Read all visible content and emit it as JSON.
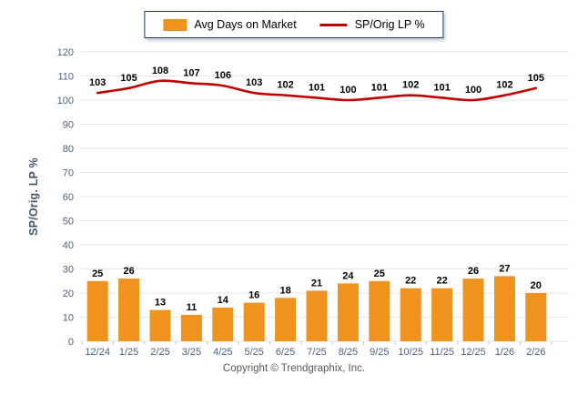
{
  "legend": {
    "items": [
      {
        "label": "Avg Days on Market",
        "type": "bar",
        "color": "#f0921e"
      },
      {
        "label": "SP/Orig LP %",
        "type": "line",
        "color": "#c00000"
      }
    ]
  },
  "footer": {
    "copyright": "Copyright © Trendgraphix, Inc."
  },
  "chart_data": {
    "type": "bar",
    "subtype": "bar-line-combo",
    "categories": [
      "12/24",
      "1/25",
      "2/25",
      "3/25",
      "4/25",
      "5/25",
      "6/25",
      "7/25",
      "8/25",
      "9/25",
      "10/25",
      "11/25",
      "12/25",
      "1/26",
      "2/26"
    ],
    "series": [
      {
        "name": "Avg Days on Market",
        "type": "bar",
        "color": "#f0921e",
        "values": [
          25,
          26,
          13,
          11,
          14,
          16,
          18,
          21,
          24,
          25,
          22,
          22,
          26,
          27,
          20
        ]
      },
      {
        "name": "SP/Orig LP %",
        "type": "line",
        "color": "#c00000",
        "values": [
          103,
          105,
          108,
          107,
          106,
          103,
          102,
          101,
          100,
          101,
          102,
          101,
          100,
          102,
          105
        ]
      }
    ],
    "title": "",
    "xlabel": "",
    "ylabel": "SP/Orig. LP %",
    "ylim": [
      0,
      120
    ],
    "ytick_step": 10,
    "grid": "horizontal",
    "grid_color": "#e7e7e7",
    "tick_color": "#c9c9c9",
    "axis_label_color": "#4a6383",
    "data_label_color": "#000000",
    "legend_position": "top-center",
    "data_labels": "shown"
  }
}
